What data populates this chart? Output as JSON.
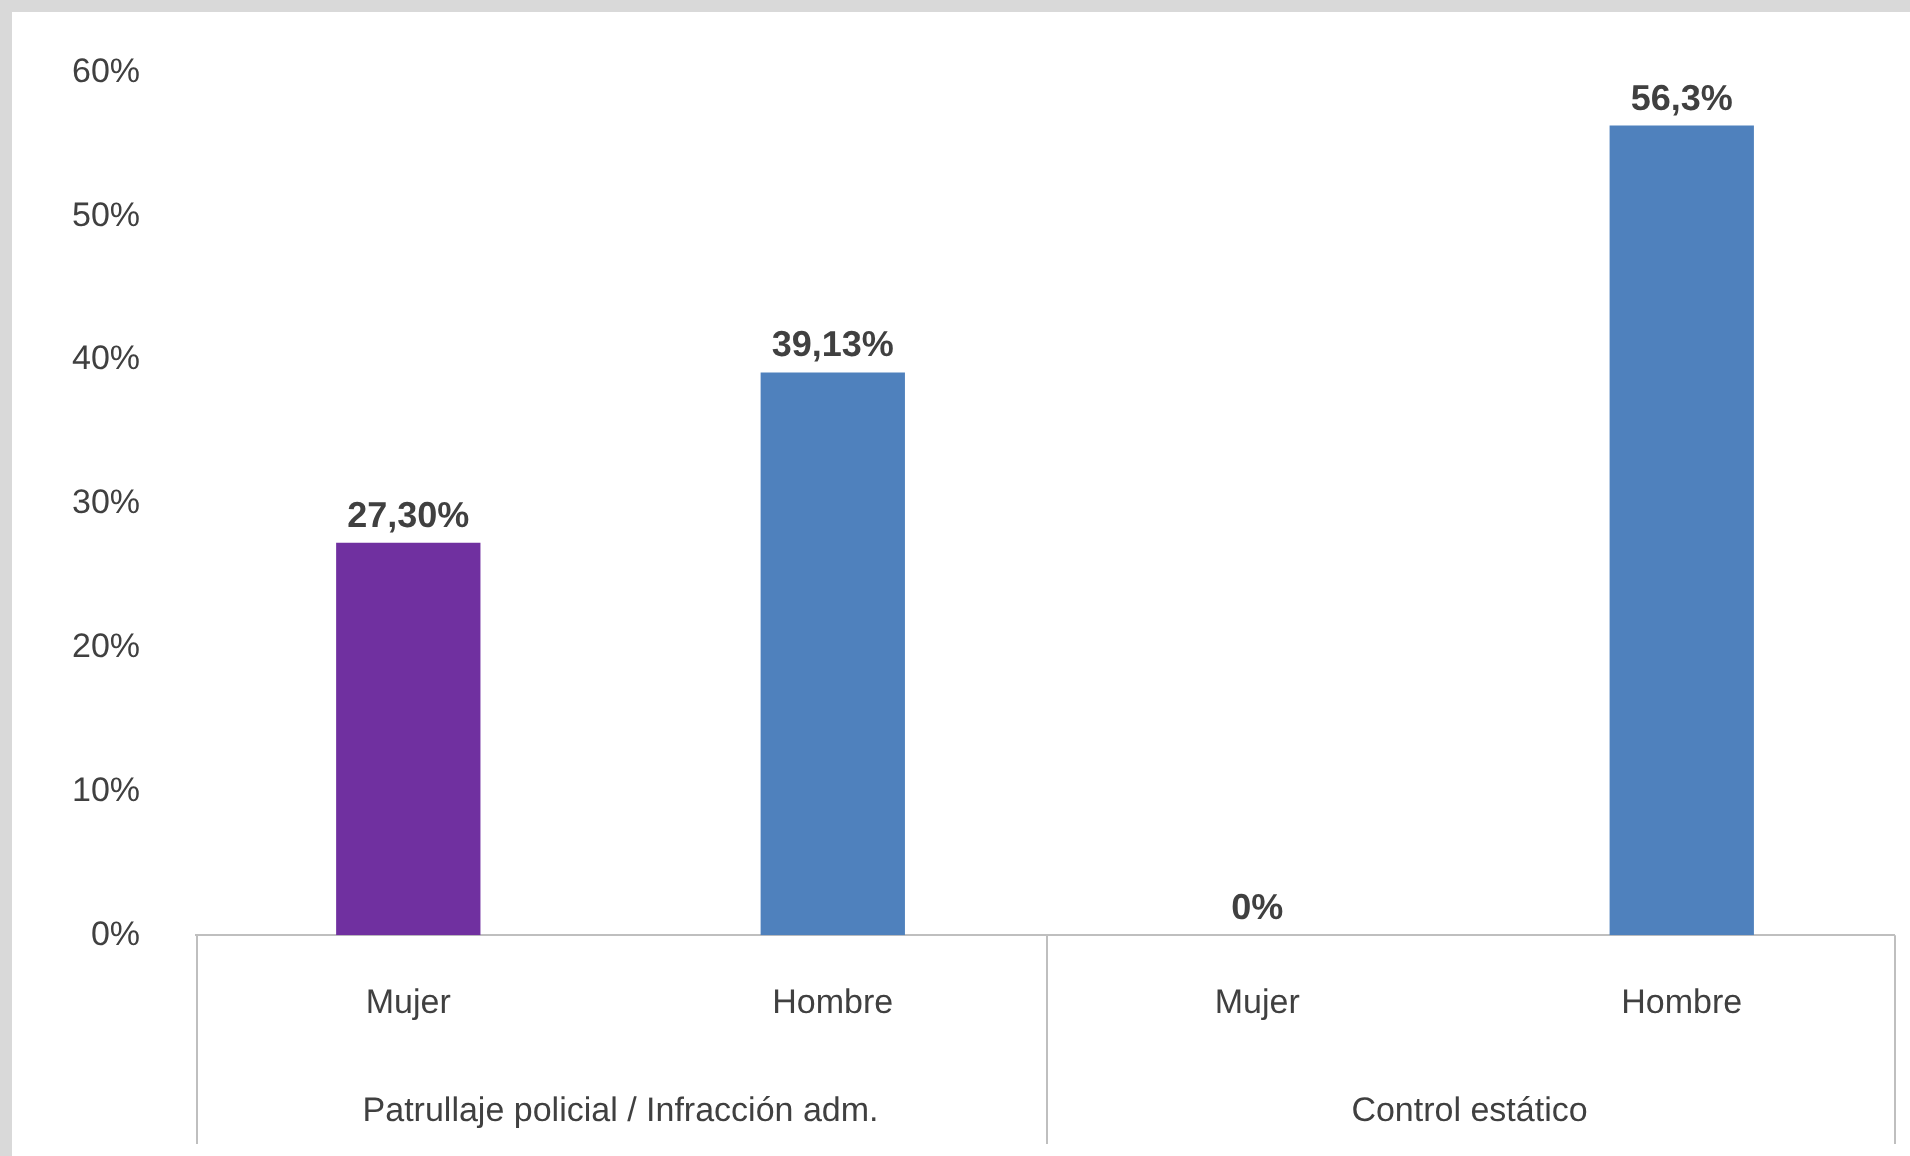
{
  "chart_data": {
    "type": "bar",
    "categories": [
      "Mujer",
      "Hombre",
      "Mujer",
      "Hombre"
    ],
    "values": [
      27.3,
      39.13,
      0,
      56.3
    ],
    "colors": [
      "#7030a0",
      "#4f81bd",
      "#7030a0",
      "#4f81bd"
    ],
    "value_labels": [
      "27,30%",
      "39,13%",
      "0%",
      "56,3%"
    ],
    "ylim": [
      0,
      60
    ],
    "yticks": [
      {
        "value": 0,
        "label": "0%"
      },
      {
        "value": 10,
        "label": "10%"
      },
      {
        "value": 20,
        "label": "20%"
      },
      {
        "value": 30,
        "label": "30%"
      },
      {
        "value": 40,
        "label": "40%"
      },
      {
        "value": 50,
        "label": "50%"
      },
      {
        "value": 60,
        "label": "60%"
      }
    ],
    "annotations": [
      "Patrullaje policial / Infracción adm.",
      "Control estático"
    ],
    "grid": false,
    "legend": false
  }
}
